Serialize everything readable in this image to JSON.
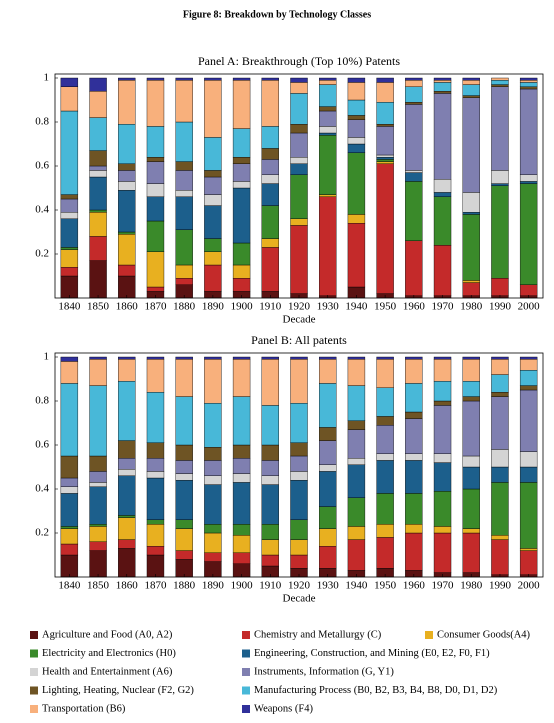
{
  "figure_title": "Figure 8: Breakdown by Technology Classes",
  "chart_data": [
    {
      "type": "stacked-bar",
      "title": "Panel A: Breakthrough (Top 10%) Patents",
      "x_label": "Decade",
      "categories": [
        "1840",
        "1850",
        "1860",
        "1870",
        "1880",
        "1890",
        "1900",
        "1910",
        "1920",
        "1930",
        "1940",
        "1950",
        "1960",
        "1970",
        "1980",
        "1990",
        "2000"
      ],
      "ylim": [
        0,
        1
      ],
      "yticks": [
        0.2,
        0.4,
        0.6,
        0.8,
        1
      ],
      "series": [
        {
          "name": "Agriculture and Food (A0, A2)",
          "color": "#5a1212",
          "values": [
            0.1,
            0.17,
            0.1,
            0.03,
            0.06,
            0.03,
            0.03,
            0.03,
            0.02,
            0.01,
            0.05,
            0.02,
            0.01,
            0.01,
            0.01,
            0.01,
            0.01
          ]
        },
        {
          "name": "Chemistry and Metallurgy (C)",
          "color": "#c42a2a",
          "values": [
            0.04,
            0.11,
            0.05,
            0.02,
            0.03,
            0.12,
            0.06,
            0.2,
            0.31,
            0.45,
            0.29,
            0.59,
            0.25,
            0.23,
            0.06,
            0.08,
            0.05
          ]
        },
        {
          "name": "Consumer Goods(A4)",
          "color": "#e8b020",
          "values": [
            0.08,
            0.11,
            0.14,
            0.16,
            0.06,
            0.06,
            0.06,
            0.04,
            0.03,
            0.01,
            0.04,
            0.01,
            0.0,
            0.0,
            0.01,
            0.0,
            0.0
          ]
        },
        {
          "name": "Electricity and Electronics (H0)",
          "color": "#3a8a2a",
          "values": [
            0.01,
            0.01,
            0.01,
            0.14,
            0.16,
            0.06,
            0.1,
            0.15,
            0.2,
            0.27,
            0.28,
            0.01,
            0.27,
            0.22,
            0.3,
            0.42,
            0.46
          ]
        },
        {
          "name": "Engineering, Construction, and Mining (E0, E2, F0, F1)",
          "color": "#1c5f8c",
          "values": [
            0.13,
            0.15,
            0.19,
            0.11,
            0.15,
            0.15,
            0.25,
            0.1,
            0.05,
            0.01,
            0.04,
            0.01,
            0.04,
            0.02,
            0.01,
            0.01,
            0.01
          ]
        },
        {
          "name": "Health and Entertainment (A6)",
          "color": "#d4d4d4",
          "values": [
            0.03,
            0.03,
            0.04,
            0.06,
            0.03,
            0.05,
            0.03,
            0.04,
            0.03,
            0.03,
            0.03,
            0.01,
            0.01,
            0.06,
            0.09,
            0.06,
            0.03
          ]
        },
        {
          "name": "Instruments, Information (G, Y1)",
          "color": "#7f7fb0",
          "values": [
            0.06,
            0.02,
            0.05,
            0.1,
            0.09,
            0.08,
            0.08,
            0.07,
            0.11,
            0.07,
            0.08,
            0.13,
            0.3,
            0.39,
            0.43,
            0.38,
            0.39
          ]
        },
        {
          "name": "Lighting, Heating, Nuclear (F2, G2)",
          "color": "#6e5424",
          "values": [
            0.02,
            0.07,
            0.03,
            0.02,
            0.04,
            0.03,
            0.03,
            0.05,
            0.04,
            0.02,
            0.02,
            0.01,
            0.01,
            0.01,
            0.01,
            0.01,
            0.01
          ]
        },
        {
          "name": "Manufacturing Process (B0, B2, B3, B4, B8, D0, D1, D2)",
          "color": "#48b8d8",
          "values": [
            0.38,
            0.15,
            0.18,
            0.14,
            0.18,
            0.15,
            0.13,
            0.1,
            0.14,
            0.1,
            0.07,
            0.1,
            0.07,
            0.04,
            0.05,
            0.02,
            0.02
          ]
        },
        {
          "name": "Transportation (B6)",
          "color": "#f8b07c",
          "values": [
            0.11,
            0.12,
            0.2,
            0.21,
            0.19,
            0.26,
            0.22,
            0.21,
            0.05,
            0.02,
            0.08,
            0.09,
            0.03,
            0.01,
            0.02,
            0.01,
            0.01
          ]
        },
        {
          "name": "Weapons (F4)",
          "color": "#30309a",
          "values": [
            0.04,
            0.06,
            0.01,
            0.01,
            0.01,
            0.01,
            0.01,
            0.01,
            0.02,
            0.01,
            0.02,
            0.02,
            0.01,
            0.01,
            0.01,
            0.0,
            0.01
          ]
        }
      ]
    },
    {
      "type": "stacked-bar",
      "title": "Panel B: All patents",
      "x_label": "Decade",
      "categories": [
        "1840",
        "1850",
        "1860",
        "1870",
        "1880",
        "1890",
        "1900",
        "1910",
        "1920",
        "1930",
        "1940",
        "1950",
        "1960",
        "1970",
        "1980",
        "1990",
        "2000"
      ],
      "ylim": [
        0,
        1
      ],
      "yticks": [
        0.2,
        0.4,
        0.6,
        0.8,
        1
      ],
      "series": [
        {
          "color": "#5a1212",
          "values": [
            0.1,
            0.12,
            0.13,
            0.1,
            0.08,
            0.07,
            0.06,
            0.05,
            0.04,
            0.04,
            0.03,
            0.04,
            0.03,
            0.02,
            0.02,
            0.01,
            0.01
          ]
        },
        {
          "color": "#c42a2a",
          "values": [
            0.05,
            0.04,
            0.04,
            0.04,
            0.04,
            0.04,
            0.05,
            0.05,
            0.06,
            0.1,
            0.14,
            0.14,
            0.17,
            0.18,
            0.18,
            0.16,
            0.11
          ]
        },
        {
          "color": "#e8b020",
          "values": [
            0.07,
            0.07,
            0.1,
            0.1,
            0.1,
            0.09,
            0.08,
            0.07,
            0.07,
            0.08,
            0.06,
            0.06,
            0.04,
            0.03,
            0.02,
            0.02,
            0.01
          ]
        },
        {
          "color": "#3a8a2a",
          "values": [
            0.01,
            0.01,
            0.01,
            0.02,
            0.04,
            0.04,
            0.05,
            0.07,
            0.09,
            0.1,
            0.13,
            0.14,
            0.14,
            0.16,
            0.18,
            0.24,
            0.3
          ]
        },
        {
          "color": "#1c5f8c",
          "values": [
            0.15,
            0.17,
            0.18,
            0.19,
            0.18,
            0.18,
            0.19,
            0.18,
            0.18,
            0.16,
            0.15,
            0.15,
            0.15,
            0.13,
            0.1,
            0.07,
            0.07
          ]
        },
        {
          "color": "#d4d4d4",
          "values": [
            0.03,
            0.02,
            0.03,
            0.03,
            0.03,
            0.04,
            0.04,
            0.04,
            0.04,
            0.03,
            0.03,
            0.03,
            0.03,
            0.04,
            0.05,
            0.08,
            0.07
          ]
        },
        {
          "color": "#7f7fb0",
          "values": [
            0.04,
            0.05,
            0.05,
            0.06,
            0.06,
            0.07,
            0.07,
            0.07,
            0.07,
            0.11,
            0.13,
            0.13,
            0.16,
            0.22,
            0.25,
            0.24,
            0.28
          ]
        },
        {
          "color": "#6e5424",
          "values": [
            0.1,
            0.07,
            0.08,
            0.07,
            0.07,
            0.06,
            0.06,
            0.07,
            0.06,
            0.06,
            0.04,
            0.04,
            0.03,
            0.02,
            0.02,
            0.02,
            0.02
          ]
        },
        {
          "color": "#48b8d8",
          "values": [
            0.33,
            0.32,
            0.27,
            0.23,
            0.22,
            0.2,
            0.22,
            0.18,
            0.18,
            0.2,
            0.16,
            0.13,
            0.13,
            0.09,
            0.07,
            0.08,
            0.07
          ]
        },
        {
          "color": "#f8b07c",
          "values": [
            0.1,
            0.12,
            0.1,
            0.15,
            0.17,
            0.2,
            0.17,
            0.21,
            0.2,
            0.11,
            0.12,
            0.13,
            0.11,
            0.1,
            0.1,
            0.07,
            0.05
          ]
        },
        {
          "color": "#30309a",
          "values": [
            0.02,
            0.01,
            0.01,
            0.01,
            0.01,
            0.01,
            0.01,
            0.01,
            0.01,
            0.01,
            0.01,
            0.01,
            0.01,
            0.01,
            0.01,
            0.01,
            0.01
          ]
        }
      ]
    }
  ]
}
